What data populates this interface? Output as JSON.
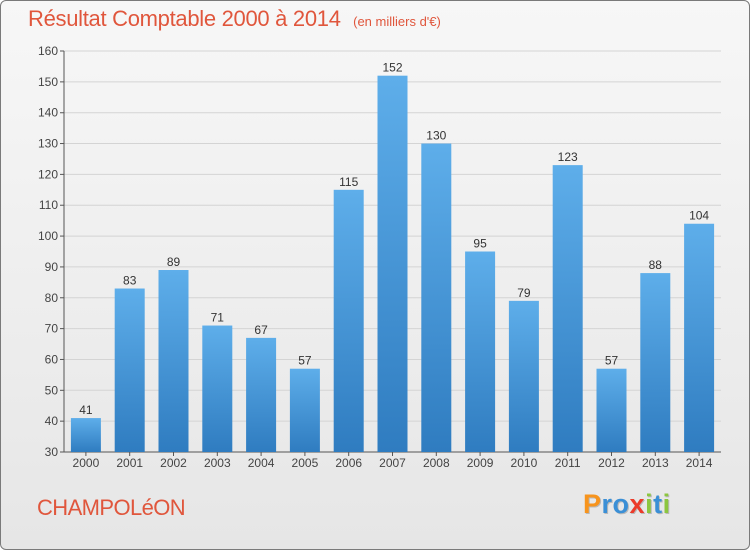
{
  "header": {
    "title": "Résultat Comptable 2000 à 2014",
    "unit": "(en milliers d'€)"
  },
  "footer": {
    "commune": "CHAMPOLéON",
    "logo_letters": [
      "P",
      "r",
      "o",
      "x",
      "i",
      "t",
      "i"
    ],
    "logo_colors": [
      "#f7941d",
      "#3a8fd6",
      "#3a8fd6",
      "#ec3b2a",
      "#8cc63f",
      "#3a8fd6",
      "#8cc63f"
    ]
  },
  "colors": {
    "bar_top": "#5eaeea",
    "bar_bottom": "#2f7cc0",
    "title": "#e0563c"
  },
  "chart_data": {
    "type": "bar",
    "title": "Résultat Comptable 2000 à 2014",
    "subtitle": "(en milliers d'€)",
    "xlabel": "",
    "ylabel": "",
    "ylim": [
      30,
      160
    ],
    "yticks": [
      30,
      40,
      50,
      60,
      70,
      80,
      90,
      100,
      110,
      120,
      130,
      140,
      150,
      160
    ],
    "grid": true,
    "categories": [
      "2000",
      "2001",
      "2002",
      "2003",
      "2004",
      "2005",
      "2006",
      "2007",
      "2008",
      "2009",
      "2010",
      "2011",
      "2012",
      "2013",
      "2014"
    ],
    "values": [
      41,
      83,
      89,
      71,
      67,
      57,
      115,
      152,
      130,
      95,
      79,
      123,
      57,
      88,
      104
    ]
  }
}
